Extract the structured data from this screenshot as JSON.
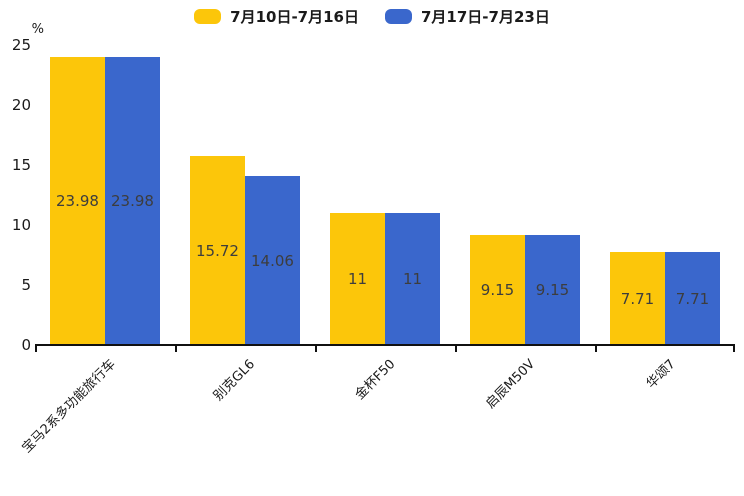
{
  "chart_data": {
    "type": "bar",
    "title": "",
    "categories": [
      "宝马2系多功能旅行车",
      "别克GL6",
      "金杯F50",
      "启辰M50V",
      "华颂7"
    ],
    "series": [
      {
        "name": "7月10日-7月16日",
        "color": "#FCC60A",
        "values": [
          23.98,
          15.72,
          11,
          9.15,
          7.71
        ]
      },
      {
        "name": "7月17日-7月23日",
        "color": "#3A67CC",
        "values": [
          23.98,
          14.06,
          11,
          9.15,
          7.71
        ]
      }
    ],
    "value_labels": [
      "23.98",
      "15.72",
      "11",
      "9.15",
      "7.71",
      "23.98",
      "14.06",
      "11",
      "9.15",
      "7.71"
    ],
    "xlabel": "",
    "ylabel": "%",
    "ylim": [
      0,
      25
    ],
    "yticks": [
      0,
      5,
      10,
      15,
      20,
      25
    ],
    "grid": false,
    "legend_position": "top-center",
    "bar_label_position": "inside-center"
  },
  "colors": {
    "axis": "#111111",
    "tick_text": "#1a1a1a",
    "bar_label_text": "#3d3d3d",
    "background": "#ffffff"
  }
}
